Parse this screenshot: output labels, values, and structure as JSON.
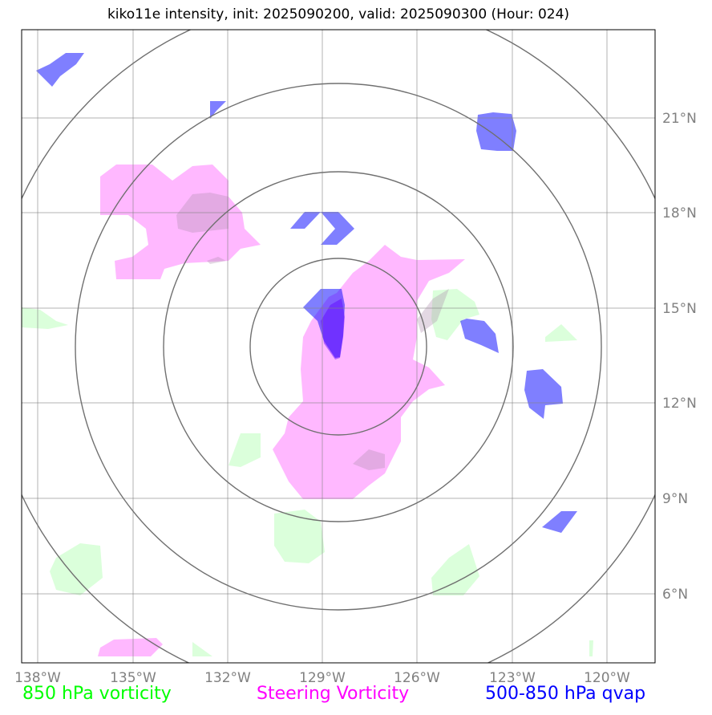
{
  "title": "kiko11e intensity, init: 2025090200, valid: 2025090300 (Hour: 024)",
  "colors": {
    "vorticity_850": "#00ff00",
    "steering_vorticity": "#ff00ff",
    "qvap_500_850": "#0000ff",
    "grid": "#808080",
    "frame": "#000000"
  },
  "axes": {
    "lon_ticks": [
      "138°W",
      "135°W",
      "132°W",
      "129°W",
      "126°W",
      "123°W",
      "120°W"
    ],
    "lat_ticks": [
      "6°N",
      "9°N",
      "12°N",
      "15°N",
      "18°N",
      "21°N"
    ]
  },
  "legend": {
    "vorticity_850": "850 hPa vorticity",
    "steering_vorticity": "Steering Vorticity",
    "qvap": "500-850 hPa qvap"
  }
}
